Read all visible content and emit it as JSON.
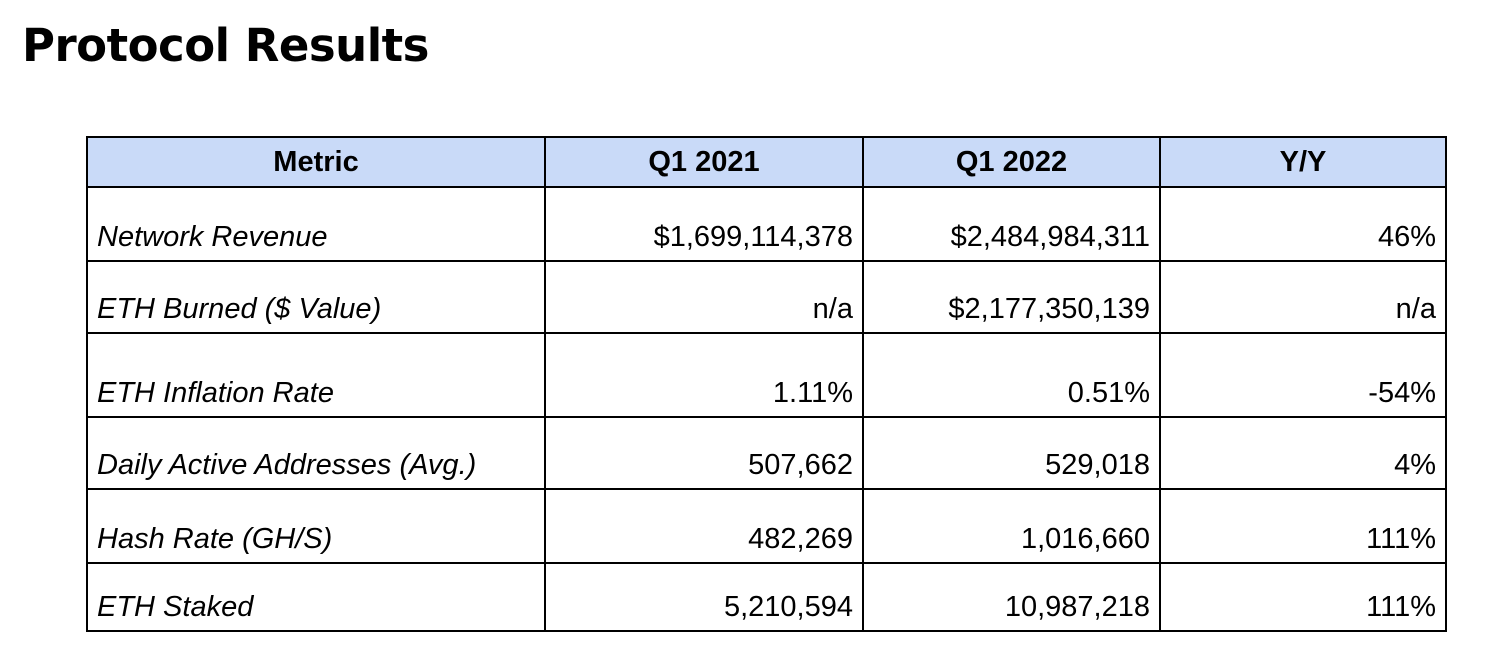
{
  "title": "Protocol Results",
  "table": {
    "headers": [
      "Metric",
      "Q1 2021",
      "Q1 2022",
      "Y/Y"
    ],
    "rows": [
      [
        "Network Revenue",
        "$1,699,114,378",
        "$2,484,984,311",
        "46%"
      ],
      [
        "ETH Burned ($ Value)",
        "n/a",
        "$2,177,350,139",
        "n/a"
      ],
      [
        "ETH Inflation Rate",
        "1.11%",
        "0.51%",
        "-54%"
      ],
      [
        "Daily Active Addresses (Avg.)",
        "507,662",
        "529,018",
        "4%"
      ],
      [
        "Hash Rate (GH/S)",
        "482,269",
        "1,016,660",
        "111%"
      ],
      [
        "ETH Staked",
        "5,210,594",
        "10,987,218",
        "111%"
      ]
    ]
  },
  "colors": {
    "header_background": "#c9daf8",
    "border": "#000000"
  }
}
